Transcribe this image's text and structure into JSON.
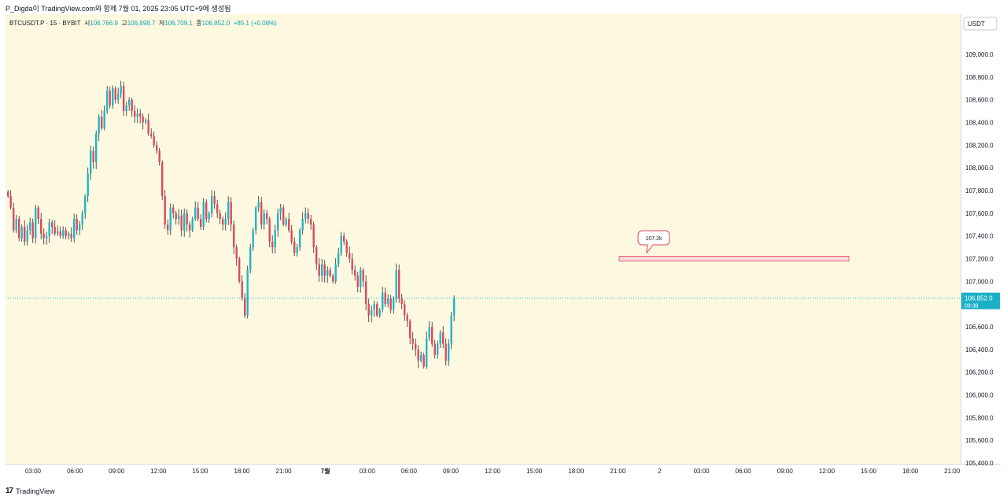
{
  "attribution": "P_Digda이 TradingView.com와 함께 7월 01, 2025 23:05 UTC+9에 생성됨",
  "footer_logo": "TradingView",
  "footer_logo_mark": "17",
  "legend": {
    "symbol": "BTCUSDT.P · 15 · BYBIT",
    "open_label": "시",
    "open": "106,766.9",
    "high_label": "고",
    "high": "106,898.7",
    "low_label": "저",
    "low": "106,709.1",
    "close_label": "종",
    "close": "106,852.0",
    "change": "+85.1 (+0.08%)"
  },
  "colors": {
    "background": "#fdf9e0",
    "up": "#22b5c8",
    "down": "#e0485d",
    "current_price": "#1ab0c6",
    "zone_fill": "#f9d8da",
    "zone_stroke": "#e0485d"
  },
  "chart_data": {
    "type": "candlestick",
    "symbol": "BTCUSDT.P",
    "interval": "15",
    "exchange": "BYBIT",
    "currency_label": "USDT",
    "y_ticks": [
      "109,000.0",
      "108,800.0",
      "108,600.0",
      "108,400.0",
      "108,200.0",
      "108,000.0",
      "107,800.0",
      "107,600.0",
      "107,400.0",
      "107,200.0",
      "107,000.0",
      "106,600.0",
      "106,400.0",
      "106,200.0",
      "106,000.0",
      "105,800.0",
      "105,600.0",
      "105,400.0"
    ],
    "y_tick_values": [
      109000,
      108800,
      108600,
      108400,
      108200,
      108000,
      107800,
      107600,
      107400,
      107200,
      107000,
      106600,
      106400,
      106200,
      106000,
      105800,
      105600,
      105400
    ],
    "ylim": [
      105400,
      109200
    ],
    "x_ticks": [
      "03:00",
      "06:00",
      "09:00",
      "12:00",
      "15:00",
      "18:00",
      "21:00",
      "7월",
      "03:00",
      "06:00",
      "09:00",
      "12:00",
      "15:00",
      "18:00",
      "21:00",
      "2",
      "03:00",
      "06:00",
      "09:00",
      "12:00",
      "15:00",
      "18:00",
      "21:00"
    ],
    "x_tick_bold": [
      false,
      false,
      false,
      false,
      false,
      false,
      false,
      true,
      false,
      false,
      false,
      false,
      false,
      false,
      false,
      false,
      false,
      false,
      false,
      false,
      false,
      false,
      false
    ],
    "current_price": 106852.0,
    "current_price_label": "106,852.0",
    "countdown_label": "09:38",
    "closes": [
      107750,
      107650,
      107450,
      107550,
      107380,
      107480,
      107350,
      107450,
      107520,
      107380,
      107650,
      107550,
      107420,
      107380,
      107400,
      107520,
      107480,
      107420,
      107440,
      107400,
      107450,
      107400,
      107420,
      107380,
      107550,
      107450,
      107500,
      107600,
      107750,
      107950,
      108150,
      108050,
      108300,
      108450,
      108350,
      108500,
      108680,
      108550,
      108700,
      108600,
      108650,
      108720,
      108500,
      108550,
      108600,
      108500,
      108450,
      108480,
      108450,
      108400,
      108420,
      108300,
      108280,
      108200,
      108150,
      108050,
      107750,
      107500,
      107450,
      107650,
      107600,
      107550,
      107580,
      107450,
      107600,
      107500,
      107450,
      107550,
      107650,
      107550,
      107480,
      107700,
      107550,
      107600,
      107750,
      107680,
      107600,
      107550,
      107500,
      107550,
      107700,
      107500,
      107300,
      107200,
      107000,
      106850,
      106700,
      107100,
      107300,
      107450,
      107650,
      107700,
      107500,
      107600,
      107550,
      107350,
      107300,
      107450,
      107600,
      107650,
      107500,
      107550,
      107450,
      107350,
      107250,
      107300,
      107450,
      107550,
      107600,
      107550,
      107500,
      107300,
      107150,
      107050,
      107150,
      107050,
      107100,
      107050,
      107000,
      107150,
      107250,
      107400,
      107350,
      107250,
      107200,
      107100,
      107050,
      106950,
      107100,
      107000,
      106800,
      106700,
      106750,
      106800,
      106700,
      106750,
      106900,
      106800,
      106850,
      106750,
      106850,
      107100,
      106850,
      106800,
      106700,
      106650,
      106500,
      106450,
      106400,
      106300,
      106350,
      106250,
      106500,
      106600,
      106450,
      106350,
      106450,
      106550,
      106450,
      106300,
      106450,
      106700,
      106852
    ]
  }
}
